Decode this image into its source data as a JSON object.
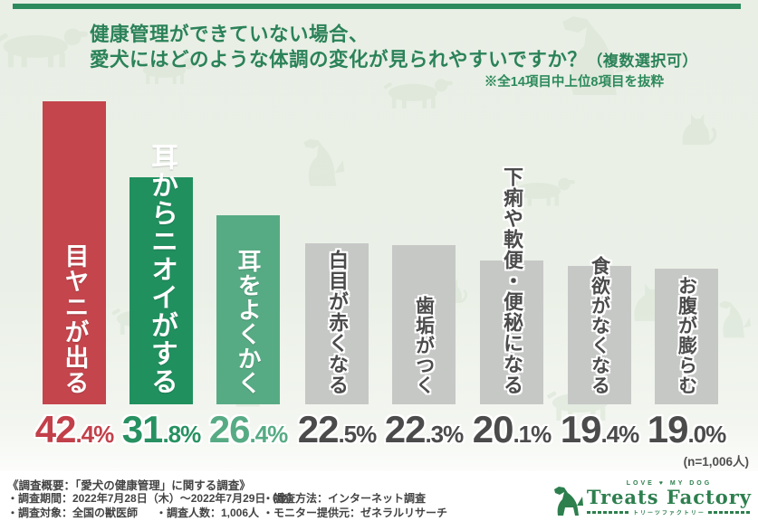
{
  "header": {
    "title_line1": "健康管理ができていない場合、",
    "title_line2": "愛犬にはどのような体調の変化が見られやすいですか？",
    "title_suffix": "（複数選択可）",
    "note": "※全14項目中上位8項目を抜粋"
  },
  "chart_data": {
    "type": "bar",
    "title": "健康管理ができていない場合、愛犬にはどのような体調の変化が見られやすいですか？（複数選択可）",
    "categories": [
      "目ヤニが出る",
      "耳からニオイがする",
      "耳をよくかく",
      "白目が赤くなる",
      "歯垢がつく",
      "下痢や軟便・便秘になる",
      "食欲がなくなる",
      "お腹が膨らむ"
    ],
    "values": [
      42.4,
      31.8,
      26.4,
      22.5,
      22.3,
      20.1,
      19.4,
      19.0
    ],
    "ylim": [
      0,
      45
    ],
    "grid": false,
    "legend": false,
    "sample_note": "(n=1,006人)",
    "items": [
      {
        "label": "目ヤニが出る",
        "value": 42.4,
        "value_text": "42.4%",
        "bar_color": "#c4454c",
        "label_color": "#ffffff",
        "pct_color": "#c2404a"
      },
      {
        "label": "耳からニオイがする",
        "value": 31.8,
        "value_text": "31.8%",
        "bar_color": "#21905f",
        "label_color": "#ffffff",
        "pct_color": "#279161"
      },
      {
        "label": "耳をよくかく",
        "value": 26.4,
        "value_text": "26.4%",
        "bar_color": "#57ab84",
        "label_color": "#ffffff",
        "pct_color": "#57ab84"
      },
      {
        "label": "白目が赤くなる",
        "value": 22.5,
        "value_text": "22.5%",
        "bar_color": "#c6c8c6",
        "label_color": "#4b4b4b",
        "pct_color": "#4b4b4b"
      },
      {
        "label": "歯垢がつく",
        "value": 22.3,
        "value_text": "22.3%",
        "bar_color": "#c6c8c6",
        "label_color": "#4b4b4b",
        "pct_color": "#4b4b4b"
      },
      {
        "label": "下痢や軟便・便秘になる",
        "value": 20.1,
        "value_text": "20.1%",
        "bar_color": "#c6c8c6",
        "label_color": "#4b4b4b",
        "pct_color": "#4b4b4b"
      },
      {
        "label": "食欲がなくなる",
        "value": 19.4,
        "value_text": "19.4%",
        "bar_color": "#c6c8c6",
        "label_color": "#4b4b4b",
        "pct_color": "#4b4b4b"
      },
      {
        "label": "お腹が膨らむ",
        "value": 19.0,
        "value_text": "19.0%",
        "bar_color": "#c6c8c6",
        "label_color": "#4b4b4b",
        "pct_color": "#4b4b4b"
      }
    ]
  },
  "footer": {
    "line1": "《調査概要：「愛犬の健康管理」に関する調査》",
    "period": "・調査期間：2022年7月28日（木）～2022年7月29日（金）",
    "method": "・調査方法：インターネット調査",
    "target": "・調査対象：全国の獣医師",
    "count": "・調査人数：1,006人",
    "monitor": "・モニター提供元：ゼネラルリサーチ"
  },
  "logo": {
    "tagline": "LOVE ♥ MY DOG",
    "name": "Treats Factory",
    "katakana": "トリーツファクトリー"
  },
  "colors": {
    "accent_green": "#2d8a5c",
    "title_green": "#2b8259",
    "highlight_red": "#c4454c",
    "bar_green_dark": "#21905f",
    "bar_green_light": "#57ab84",
    "bar_gray": "#c6c8c6",
    "logo_green": "#2d7f4e",
    "panel_bg": "#eaf0e7"
  }
}
